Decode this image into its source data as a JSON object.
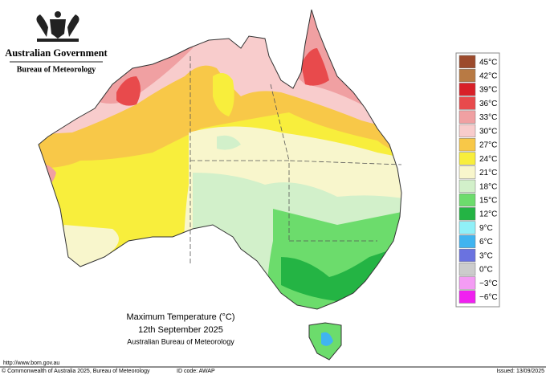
{
  "header": {
    "government": "Australian Government",
    "bureau": "Bureau of Meteorology"
  },
  "legend": {
    "items": [
      {
        "label": "45°C",
        "color": "#9c4a2c"
      },
      {
        "label": "42°C",
        "color": "#b87a44"
      },
      {
        "label": "39°C",
        "color": "#d82028"
      },
      {
        "label": "36°C",
        "color": "#e84a4c"
      },
      {
        "label": "33°C",
        "color": "#f0a0a2"
      },
      {
        "label": "30°C",
        "color": "#f8cccc"
      },
      {
        "label": "27°C",
        "color": "#f8c848"
      },
      {
        "label": "24°C",
        "color": "#f8ee3c"
      },
      {
        "label": "21°C",
        "color": "#f8f6cc"
      },
      {
        "label": "18°C",
        "color": "#d2f0ca"
      },
      {
        "label": "15°C",
        "color": "#6cdc6c"
      },
      {
        "label": "12°C",
        "color": "#24b444"
      },
      {
        "label": "9°C",
        "color": "#90f0f8"
      },
      {
        "label": "6°C",
        "color": "#40b4f0"
      },
      {
        "label": "3°C",
        "color": "#6a72e0"
      },
      {
        "label": "0°C",
        "color": "#cccccc"
      },
      {
        "label": "−3°C",
        "color": "#f49cf4"
      },
      {
        "label": "−6°C",
        "color": "#f020f0"
      }
    ]
  },
  "caption": {
    "title": "Maximum Temperature (°C)",
    "date": "12th September 2025",
    "source": "Australian Bureau of Meteorology"
  },
  "footer": {
    "url": "http://www.bom.gov.au",
    "copyright": "© Commonwealth of Australia 2025, Bureau of Meteorology",
    "id_code": "ID code: AWAP",
    "issued": "Issued: 13/09/2025"
  }
}
